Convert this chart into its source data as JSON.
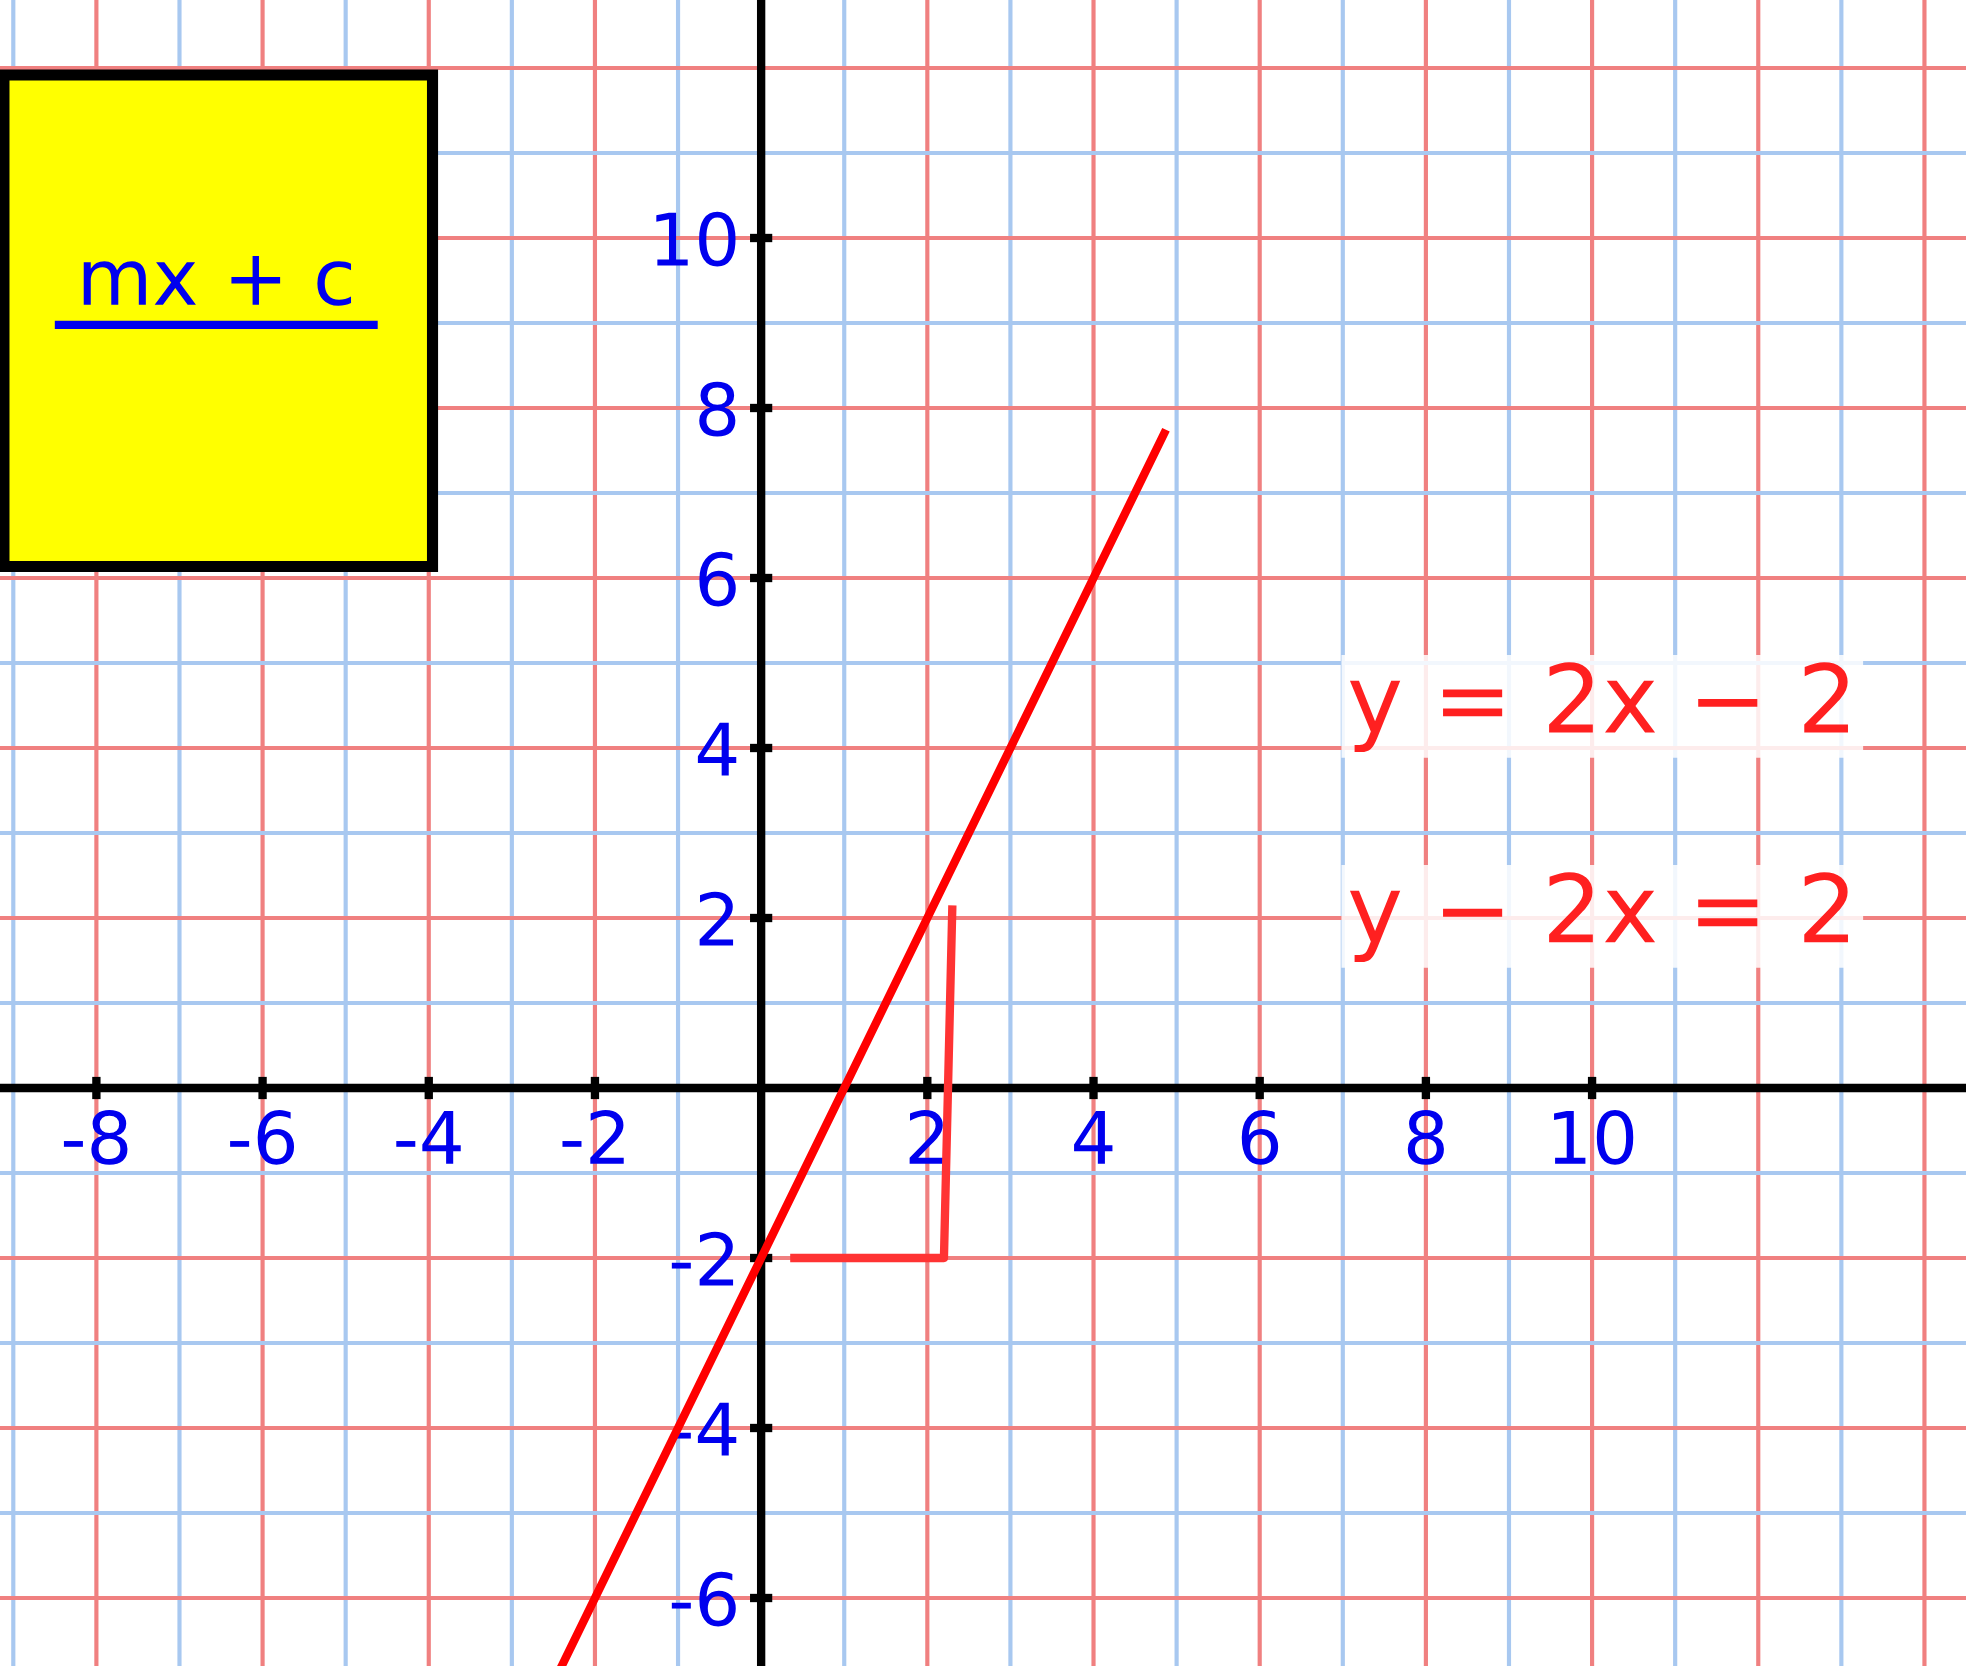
{
  "chart_data": {
    "type": "line",
    "x": [
      -2.4,
      4.85
    ],
    "series": [
      {
        "color": "#ff0000",
        "values": [
          -6.8,
          7.7
        ]
      },
      {
        "color": "#ff3333",
        "x": [
          0.4,
          2.2,
          2.3
        ],
        "values": [
          -2,
          -2,
          2.1
        ]
      }
    ],
    "xlim": [
      -9.16,
      14.5
    ],
    "ylim": [
      -6.8,
      12.8
    ],
    "xticks": [
      {
        "value": -9,
        "label": null
      },
      -8,
      {
        "value": -7,
        "label": null
      },
      -6,
      {
        "value": -5,
        "label": null
      },
      -4,
      {
        "value": -3,
        "label": null
      },
      -2,
      {
        "value": -1,
        "label": null
      },
      {
        "value": 1,
        "label": null
      },
      2,
      {
        "value": 3,
        "label": null
      },
      4,
      {
        "value": 5,
        "label": null
      },
      6,
      {
        "value": 7,
        "label": null
      },
      8,
      {
        "value": 9,
        "label": null
      },
      10,
      {
        "value": 11,
        "label": null
      },
      {
        "value": 12,
        "label": null
      },
      {
        "value": 13,
        "label": null
      },
      {
        "value": 14,
        "label": null
      }
    ],
    "yticks": [
      -6,
      {
        "value": -5,
        "label": null
      },
      -4,
      {
        "value": -3,
        "label": null
      },
      -2,
      {
        "value": -1,
        "label": null
      },
      {
        "value": 1,
        "label": null
      },
      2,
      {
        "value": 3,
        "label": null
      },
      4,
      {
        "value": 5,
        "label": null
      },
      6,
      {
        "value": 7,
        "label": null
      },
      8,
      {
        "value": 9,
        "label": null
      },
      10,
      {
        "value": 11,
        "label": null
      },
      {
        "value": 12,
        "label": null
      }
    ],
    "grid": true,
    "annotations": [
      "mx + c",
      "y = 2x − 2",
      "y − 2x = 2"
    ]
  }
}
